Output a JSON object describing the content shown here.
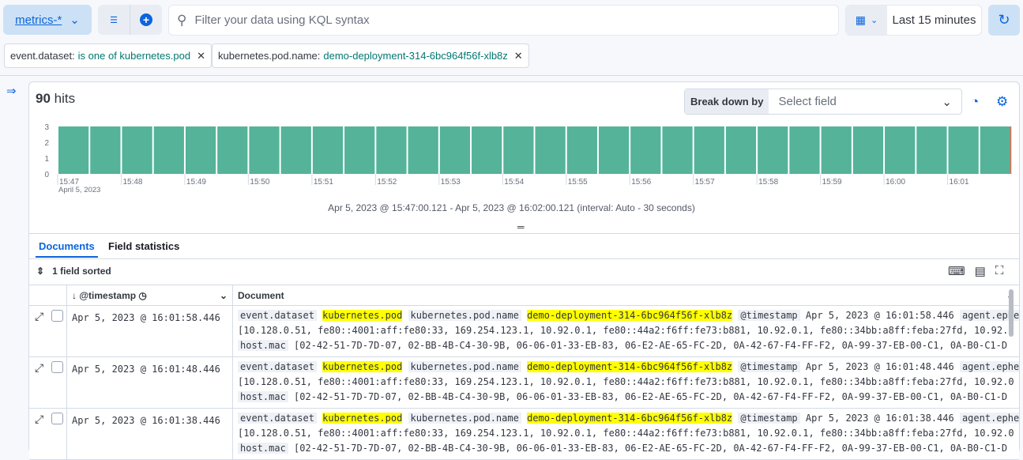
{
  "topbar": {
    "data_view": "metrics-*",
    "search_placeholder": "Filter your data using KQL syntax",
    "time_range": "Last 15 minutes"
  },
  "filters": [
    {
      "field": "event.dataset:",
      "value": "is one of kubernetes.pod"
    },
    {
      "field": "kubernetes.pod.name:",
      "value": "demo-deployment-314-6bc964f56f-xlb8z"
    }
  ],
  "histogram": {
    "hits_count": "90",
    "hits_label": "hits",
    "breakdown_label": "Break down by",
    "breakdown_placeholder": "Select field",
    "range_text": "Apr 5, 2023 @ 15:47:00.121 - Apr 5, 2023 @ 16:02:00.121 (interval: Auto - 30 seconds)"
  },
  "chart_data": {
    "type": "bar",
    "bar_color": "#54b399",
    "ylim": [
      0,
      3
    ],
    "yticks": [
      "0",
      "1",
      "2",
      "3"
    ],
    "xtick_labels": [
      "15:47",
      "15:48",
      "15:49",
      "15:50",
      "15:51",
      "15:52",
      "15:53",
      "15:54",
      "15:55",
      "15:56",
      "15:57",
      "15:58",
      "15:59",
      "16:00",
      "16:01"
    ],
    "xsub_label": "April 5, 2023",
    "values": [
      3,
      3,
      3,
      3,
      3,
      3,
      3,
      3,
      3,
      3,
      3,
      3,
      3,
      3,
      3,
      3,
      3,
      3,
      3,
      3,
      3,
      3,
      3,
      3,
      3,
      3,
      3,
      3,
      3,
      3
    ]
  },
  "tabs": [
    "Documents",
    "Field statistics"
  ],
  "grid": {
    "sorted_label": "1 field sorted",
    "col_timestamp": "@timestamp",
    "col_document": "Document",
    "rows": [
      {
        "ts": "Apr 5, 2023 @ 16:01:58.446",
        "k1": "event.dataset",
        "v1": "kubernetes.pod",
        "k2": "kubernetes.pod.name",
        "v2": "demo-deployment-314-6bc964f56f-xlb8z",
        "k3": "@timestamp",
        "v3": "Apr 5, 2023 @ 16:01:58.446",
        "k4": "agent.ephe",
        "line2": "[10.128.0.51, fe80::4001:aff:fe80:33, 169.254.123.1, 10.92.0.1, fe80::44a2:f6ff:fe73:b881, 10.92.0.1, fe80::34bb:a8ff:feba:27fd, 10.92.0",
        "k5": "host.mac",
        "v5": "[02-42-51-7D-7D-07, 02-BB-4B-C4-30-9B, 06-06-01-33-EB-83, 06-E2-AE-65-FC-2D, 0A-42-67-F4-FF-F2, 0A-99-37-EB-00-C1, 0A-B0-C1-D"
      },
      {
        "ts": "Apr 5, 2023 @ 16:01:48.446",
        "k1": "event.dataset",
        "v1": "kubernetes.pod",
        "k2": "kubernetes.pod.name",
        "v2": "demo-deployment-314-6bc964f56f-xlb8z",
        "k3": "@timestamp",
        "v3": "Apr 5, 2023 @ 16:01:48.446",
        "k4": "agent.ephe",
        "line2": "[10.128.0.51, fe80::4001:aff:fe80:33, 169.254.123.1, 10.92.0.1, fe80::44a2:f6ff:fe73:b881, 10.92.0.1, fe80::34bb:a8ff:feba:27fd, 10.92.0",
        "k5": "host.mac",
        "v5": "[02-42-51-7D-7D-07, 02-BB-4B-C4-30-9B, 06-06-01-33-EB-83, 06-E2-AE-65-FC-2D, 0A-42-67-F4-FF-F2, 0A-99-37-EB-00-C1, 0A-B0-C1-D"
      },
      {
        "ts": "Apr 5, 2023 @ 16:01:38.446",
        "k1": "event.dataset",
        "v1": "kubernetes.pod",
        "k2": "kubernetes.pod.name",
        "v2": "demo-deployment-314-6bc964f56f-xlb8z",
        "k3": "@timestamp",
        "v3": "Apr 5, 2023 @ 16:01:38.446",
        "k4": "agent.ephe",
        "line2": "[10.128.0.51, fe80::4001:aff:fe80:33, 169.254.123.1, 10.92.0.1, fe80::44a2:f6ff:fe73:b881, 10.92.0.1, fe80::34bb:a8ff:feba:27fd, 10.92.0",
        "k5": "host.mac",
        "v5": "[02-42-51-7D-7D-07, 02-BB-4B-C4-30-9B, 06-06-01-33-EB-83, 06-E2-AE-65-FC-2D, 0A-42-67-F4-FF-F2, 0A-99-37-EB-00-C1, 0A-B0-C1-D"
      }
    ]
  }
}
